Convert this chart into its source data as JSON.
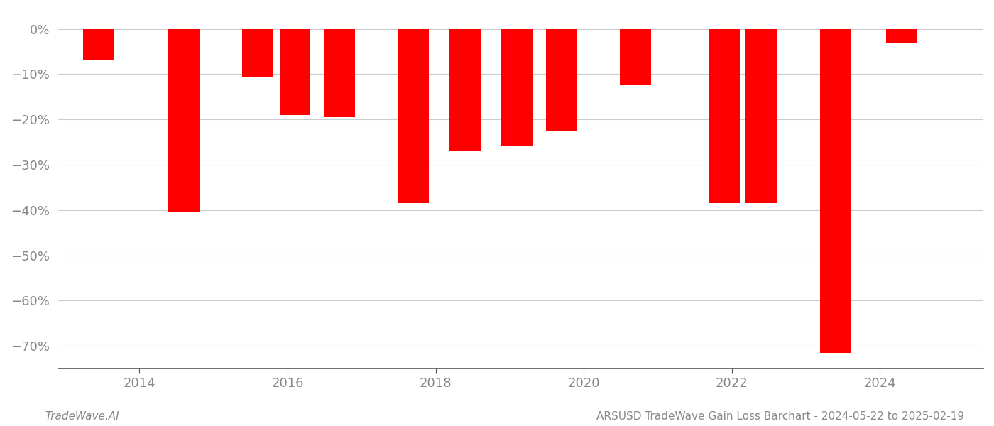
{
  "years": [
    2013.45,
    2014.6,
    2015.6,
    2016.1,
    2016.7,
    2017.7,
    2018.4,
    2019.1,
    2019.7,
    2020.7,
    2021.9,
    2022.4,
    2023.4,
    2024.3
  ],
  "values": [
    -7.0,
    -40.5,
    -10.5,
    -19.0,
    -19.5,
    -38.5,
    -27.0,
    -26.0,
    -22.5,
    -12.5,
    -38.5,
    -38.5,
    -71.5,
    -3.0
  ],
  "bar_color": "#ff0000",
  "bar_width": 0.42,
  "xlim": [
    2012.9,
    2025.4
  ],
  "ylim": [
    -75,
    4
  ],
  "yticks": [
    0,
    -10,
    -20,
    -30,
    -40,
    -50,
    -60,
    -70
  ],
  "ytick_labels": [
    "−0%",
    "−10%",
    "−20%",
    "−30%",
    "−40%",
    "−50%",
    "−60%",
    "−70%"
  ],
  "ytick_labels_first": "0%",
  "xticks": [
    2014,
    2016,
    2018,
    2020,
    2022,
    2024
  ],
  "xlabel": "",
  "ylabel": "",
  "footer_left": "TradeWave.AI",
  "footer_right": "ARSUSD TradeWave Gain Loss Barchart - 2024-05-22 to 2025-02-19",
  "grid_color": "#cccccc",
  "background_color": "#ffffff",
  "text_color": "#888888",
  "footer_fontsize": 11,
  "tick_fontsize": 13
}
